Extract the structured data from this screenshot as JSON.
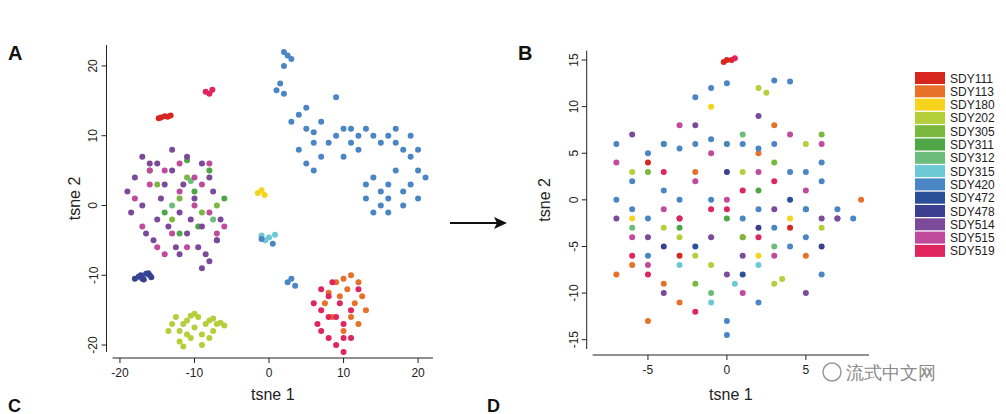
{
  "chart_data": [
    {
      "type": "scatter",
      "title": "A",
      "xlabel": "tsne 1",
      "ylabel": "tsne 2",
      "xlim": [
        -21,
        22
      ],
      "ylim": [
        -21,
        23
      ],
      "xticks": [
        -20,
        -10,
        0,
        10,
        20
      ],
      "yticks": [
        -20,
        -10,
        0,
        10,
        20
      ],
      "marker": "circle",
      "series": [
        {
          "name": "SDY111",
          "color": "#d7261e",
          "x": [
            -14.5,
            -14,
            -13.6,
            -13.2,
            -14.8
          ],
          "values": [
            12.6,
            12.8,
            12.7,
            12.9,
            12.5
          ]
        },
        {
          "name": "SDY113",
          "color": "#e8712a",
          "x": [
            9,
            10,
            11,
            12,
            12.5,
            11.5,
            10.5,
            9.5,
            8,
            13,
            12,
            11,
            10,
            7.5,
            8.5
          ],
          "values": [
            -11,
            -10.5,
            -10,
            -11,
            -13,
            -14,
            -12,
            -13,
            -12.5,
            -15,
            -17,
            -16,
            -18,
            -14,
            -16
          ]
        },
        {
          "name": "SDY180",
          "color": "#f7d31d",
          "x": [
            -1.5,
            -1,
            -0.6
          ],
          "values": [
            1.8,
            2.2,
            1.5
          ]
        },
        {
          "name": "SDY202",
          "color": "#b5cf3a",
          "x": [
            -13,
            -12.5,
            -12,
            -11.5,
            -11,
            -10.5,
            -10,
            -9.5,
            -9,
            -8.5,
            -8,
            -7.5,
            -7,
            -6.5,
            -6,
            -12,
            -11,
            -9,
            -8,
            -10,
            -13.5,
            -10.5,
            -7.5,
            -11.5
          ],
          "values": [
            -17,
            -16,
            -18,
            -17,
            -16.5,
            -19,
            -17.5,
            -16,
            -18.5,
            -17,
            -16.5,
            -18,
            -17,
            -16.8,
            -17.2,
            -19.5,
            -18.5,
            -20,
            -19,
            -15.5,
            -18,
            -15.8,
            -16.2,
            -20.2
          ]
        },
        {
          "name": "SDY305",
          "color": "#7bb83f",
          "x": [
            -15,
            -12,
            -9,
            -11,
            -7,
            -13
          ],
          "values": [
            3,
            1,
            -1,
            4,
            0,
            -2
          ]
        },
        {
          "name": "SDY311",
          "color": "#4ea646",
          "x": [
            -16,
            -14,
            -10,
            -8,
            -12,
            -9.5,
            -6,
            -11
          ],
          "values": [
            5,
            -1,
            2,
            5,
            -4,
            -3,
            1,
            6.5
          ]
        },
        {
          "name": "SDY312",
          "color": "#6cbd7c",
          "x": [
            -13,
            -10.5,
            -7.5
          ],
          "values": [
            0,
            3.5,
            -2
          ]
        },
        {
          "name": "SDY315",
          "color": "#6ccad6",
          "x": [
            -1,
            0,
            0.8,
            -0.5
          ],
          "values": [
            -4.3,
            -4.6,
            -4.2,
            -5
          ]
        },
        {
          "name": "SDY420",
          "color": "#4a86c5",
          "x": [
            2,
            2.5,
            3,
            2,
            1.5,
            1,
            2,
            4,
            5,
            6,
            7,
            4,
            5,
            6,
            8,
            9,
            10,
            11,
            12,
            13,
            14,
            15,
            16,
            17,
            18,
            19,
            20,
            19,
            17,
            16,
            15,
            14,
            13,
            15,
            16,
            18,
            19,
            20,
            17,
            12,
            11,
            7,
            9,
            6,
            5,
            3,
            10,
            18,
            20,
            21,
            14,
            16,
            13,
            3,
            2.5,
            3.5,
            -1,
            0.5
          ],
          "values": [
            22,
            21.5,
            21,
            20,
            17.5,
            16.5,
            16,
            13,
            11,
            9,
            7,
            8,
            6,
            5,
            9,
            10,
            11,
            9,
            10,
            11,
            10,
            9,
            10,
            9,
            8,
            7,
            5,
            3,
            5,
            3,
            2,
            4,
            3,
            0,
            1,
            0,
            10,
            8,
            11,
            8,
            11,
            12,
            15.5,
            10.5,
            14,
            12,
            7,
            2,
            1,
            4,
            -1,
            -1,
            1,
            -10.5,
            -11,
            -11.5,
            -4.8,
            -5.5
          ]
        },
        {
          "name": "SDY472",
          "color": "#2c4f9a",
          "x": [
            -17.5,
            -17,
            -16.5,
            -16
          ],
          "values": [
            -10.2,
            -10.5,
            -9.8,
            -10
          ]
        },
        {
          "name": "SDY478",
          "color": "#3b3f8f",
          "x": [
            -18,
            -17.2,
            -16.8,
            -16.2,
            -15.8
          ],
          "values": [
            -10.5,
            -10,
            -10.6,
            -9.7,
            -10.3
          ]
        },
        {
          "name": "SDY514",
          "color": "#7b4a9b",
          "x": [
            -19,
            -18,
            -17,
            -16,
            -15,
            -14,
            -13,
            -12,
            -11,
            -10,
            -9,
            -8,
            -7,
            -18.5,
            -16.5,
            -14.5,
            -12.5,
            -10.5,
            -8.5,
            -6.5,
            -17,
            -15,
            -13,
            -11,
            -9,
            -7.5,
            -15.5,
            -13.5,
            -11.5,
            -9.5,
            -8,
            -7,
            -9,
            -12
          ],
          "values": [
            2,
            4,
            0,
            6,
            -2,
            3,
            5,
            -1,
            7,
            1,
            -3,
            4,
            -5,
            -1,
            -4,
            1,
            -6,
            -2,
            -7,
            -2,
            7,
            6,
            8,
            -4,
            6,
            2,
            -5,
            -3,
            3,
            -6,
            -8,
            -5,
            -9,
            -7
          ]
        },
        {
          "name": "SDY515",
          "color": "#c04a9c",
          "x": [
            -18,
            -16,
            -14,
            -12,
            -10,
            -8,
            -6,
            -17,
            -15,
            -13,
            -11,
            -9,
            -7,
            -14,
            -12,
            -10,
            -16,
            -8
          ],
          "values": [
            1,
            3,
            5,
            2,
            0,
            -1,
            -3,
            -3,
            -6,
            -4,
            -6,
            3,
            -4,
            -7,
            6,
            4,
            5,
            6
          ]
        },
        {
          "name": "SDY519",
          "color": "#e0245e",
          "x": [
            -8,
            -8.5,
            -7.6,
            6,
            7,
            8,
            9,
            10,
            11,
            7,
            8,
            9,
            10,
            6.5,
            8,
            9.5,
            11,
            7,
            8.5,
            10,
            12
          ],
          "values": [
            16,
            16.3,
            16.6,
            -14,
            -15,
            -13,
            -16,
            -17,
            -15,
            -18,
            -19,
            -20,
            -21,
            -17,
            -16,
            -14,
            -19,
            -12,
            -11,
            -19,
            -12
          ]
        }
      ]
    },
    {
      "type": "scatter",
      "title": "B",
      "xlabel": "tsne 1",
      "ylabel": "tsne 2",
      "xlim": [
        -8.5,
        9
      ],
      "ylim": [
        -16,
        16
      ],
      "xticks": [
        -5,
        0,
        5
      ],
      "yticks": [
        -15,
        -10,
        -5,
        0,
        5,
        10,
        15
      ],
      "marker": "circle",
      "legend": "right",
      "series": [
        {
          "name": "SDY111",
          "color": "#d7261e",
          "x": [
            -3,
            0,
            0.3,
            -0.2,
            4,
            -5
          ],
          "values": [
            -6,
            15,
            15,
            14.8,
            -3,
            4
          ]
        },
        {
          "name": "SDY113",
          "color": "#e8712a",
          "x": [
            -7,
            -6,
            -5,
            -4,
            2,
            3,
            1,
            8.5,
            -2,
            5,
            -3
          ],
          "values": [
            -8,
            -7,
            -13,
            -9,
            5,
            8,
            -4,
            0,
            3,
            -6,
            -11
          ]
        },
        {
          "name": "SDY180",
          "color": "#f7d31d",
          "x": [
            -6,
            2,
            -1,
            4
          ],
          "values": [
            -2,
            -6,
            10,
            -2
          ]
        },
        {
          "name": "SDY202",
          "color": "#b5cf3a",
          "x": [
            2,
            2.5,
            -3,
            -2,
            1,
            3,
            3.5,
            5,
            -6,
            -4,
            0,
            6,
            -1
          ],
          "values": [
            12,
            11.5,
            -4,
            -6,
            3,
            -9,
            -8.5,
            6,
            3,
            -3,
            6,
            -3,
            -7
          ]
        },
        {
          "name": "SDY305",
          "color": "#7bb83f",
          "x": [
            -5,
            1,
            3,
            -2,
            6
          ],
          "values": [
            3,
            -4,
            4,
            -9,
            7
          ]
        },
        {
          "name": "SDY311",
          "color": "#4ea646",
          "x": [
            -4,
            0,
            2,
            5,
            -3
          ],
          "values": [
            6,
            -2,
            1,
            -1,
            -3
          ]
        },
        {
          "name": "SDY312",
          "color": "#6cbd7c",
          "x": [
            -6,
            1,
            3,
            -1
          ],
          "values": [
            -3,
            7,
            -5,
            -10
          ]
        },
        {
          "name": "SDY315",
          "color": "#6ccad6",
          "x": [
            -3,
            -1,
            0.5,
            2
          ],
          "values": [
            -7,
            -11,
            -9,
            -7
          ]
        },
        {
          "name": "SDY420",
          "color": "#4a86c5",
          "x": [
            -2,
            -1,
            0,
            3,
            4,
            -5,
            -4,
            -3,
            -2,
            -1,
            0,
            1,
            2,
            3,
            4,
            5,
            6,
            7,
            5,
            4,
            3,
            -6,
            -5,
            -4,
            -3,
            -7,
            -6,
            -5,
            1,
            2,
            0,
            0,
            -1,
            6,
            7,
            8,
            -7,
            2,
            5,
            6
          ],
          "values": [
            11,
            12,
            12.5,
            12.8,
            12.7,
            5,
            6,
            5.5,
            6,
            6.5,
            6,
            6,
            5.5,
            6,
            3,
            3,
            2,
            -2,
            -4,
            -5,
            -3,
            -1,
            -2,
            1,
            0,
            0,
            2,
            -6,
            -2,
            -1,
            -13,
            -14.5,
            0,
            -8,
            -1,
            -2,
            6,
            -11,
            -1,
            4
          ]
        },
        {
          "name": "SDY472",
          "color": "#2c4f9a",
          "x": [
            -2,
            1,
            4
          ],
          "values": [
            -5,
            -8,
            0
          ]
        },
        {
          "name": "SDY478",
          "color": "#3b3f8f",
          "x": [
            -4,
            2,
            0,
            6
          ],
          "values": [
            -5,
            -3,
            3,
            -5
          ]
        },
        {
          "name": "SDY514",
          "color": "#7b4a9b",
          "x": [
            -7,
            -5,
            -3,
            -1,
            1,
            3,
            5,
            -6,
            -2,
            0,
            6,
            7,
            2,
            -4
          ],
          "values": [
            -2,
            -4,
            -2,
            -4,
            -6,
            -1,
            -10,
            7,
            8,
            -8,
            -2,
            -2,
            9,
            -10
          ]
        },
        {
          "name": "SDY515",
          "color": "#c04a9c",
          "x": [
            -6,
            -4,
            -2,
            0,
            2,
            4,
            -5,
            -3,
            1,
            3,
            5,
            -7,
            -1,
            6
          ],
          "values": [
            -4,
            -1,
            2,
            0,
            3,
            7,
            -7,
            8,
            -10,
            -6,
            1,
            4,
            5,
            6
          ]
        },
        {
          "name": "SDY519",
          "color": "#e0245e",
          "x": [
            -5,
            -3,
            -1,
            0.5,
            2,
            -4,
            1,
            -6,
            3,
            -2,
            0
          ],
          "values": [
            -8,
            -2,
            -1,
            15.2,
            -4,
            3,
            1,
            -6,
            2,
            -12,
            -1
          ]
        }
      ]
    }
  ],
  "panel_labels": [
    "C",
    "D"
  ],
  "watermark": "流式中文网"
}
